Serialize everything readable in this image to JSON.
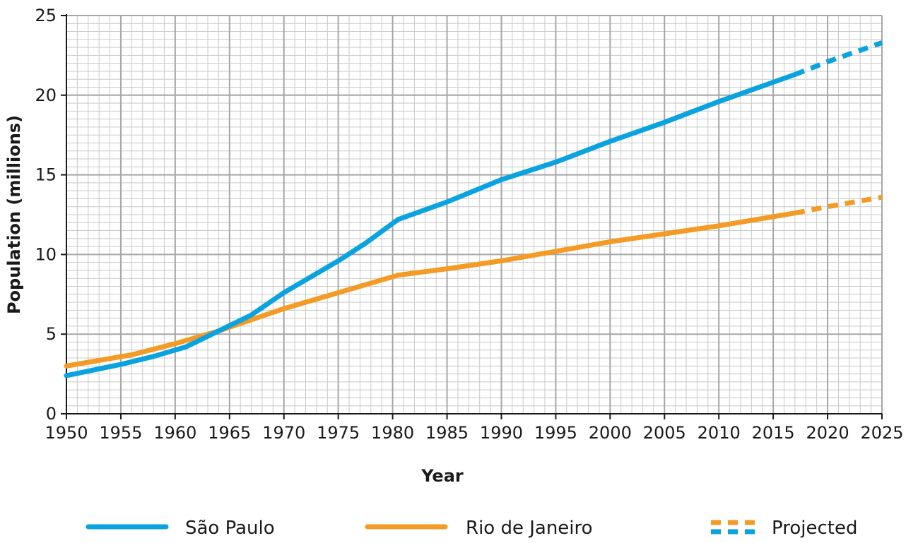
{
  "chart_data": {
    "type": "line",
    "title": "",
    "xlabel": "Year",
    "ylabel": "Population (millions)",
    "xlim": [
      1950,
      2025
    ],
    "ylim": [
      0,
      25
    ],
    "x_ticks": [
      1950,
      1955,
      1960,
      1965,
      1970,
      1975,
      1980,
      1985,
      1990,
      1995,
      2000,
      2005,
      2010,
      2015,
      2020,
      2025
    ],
    "y_ticks": [
      0,
      5,
      10,
      15,
      20,
      25
    ],
    "grid": true,
    "legend_position": "bottom",
    "series": [
      {
        "name": "São Paulo",
        "color": "#0aa3e0",
        "actual": [
          [
            1950,
            2.4
          ],
          [
            1955,
            3.1
          ],
          [
            1958,
            3.6
          ],
          [
            1961,
            4.2
          ],
          [
            1967,
            6.2
          ],
          [
            1970,
            7.6
          ],
          [
            1975,
            9.6
          ],
          [
            1977.5,
            10.7
          ],
          [
            1980.5,
            12.2
          ],
          [
            1985,
            13.3
          ],
          [
            1987.5,
            14.0
          ],
          [
            1990,
            14.7
          ],
          [
            1995,
            15.8
          ],
          [
            2000,
            17.1
          ],
          [
            2005,
            18.3
          ],
          [
            2010,
            19.6
          ],
          [
            2017,
            21.3
          ]
        ],
        "projected": [
          [
            2017,
            21.3
          ],
          [
            2020,
            22.1
          ],
          [
            2025,
            23.3
          ]
        ]
      },
      {
        "name": "Rio de Janeiro",
        "color": "#f39b25",
        "actual": [
          [
            1950,
            3.0
          ],
          [
            1956,
            3.7
          ],
          [
            1960,
            4.4
          ],
          [
            1964,
            5.2
          ],
          [
            1970,
            6.6
          ],
          [
            1975,
            7.6
          ],
          [
            1980.5,
            8.7
          ],
          [
            1985,
            9.1
          ],
          [
            1990,
            9.6
          ],
          [
            1995,
            10.2
          ],
          [
            2000,
            10.8
          ],
          [
            2005,
            11.3
          ],
          [
            2010,
            11.8
          ],
          [
            2017,
            12.6
          ]
        ],
        "projected": [
          [
            2017,
            12.6
          ],
          [
            2020,
            13.0
          ],
          [
            2025,
            13.6
          ]
        ]
      }
    ],
    "legend": {
      "projected_label": "Projected",
      "projected_colors": [
        "#f39b25",
        "#0aa3e0"
      ]
    }
  }
}
